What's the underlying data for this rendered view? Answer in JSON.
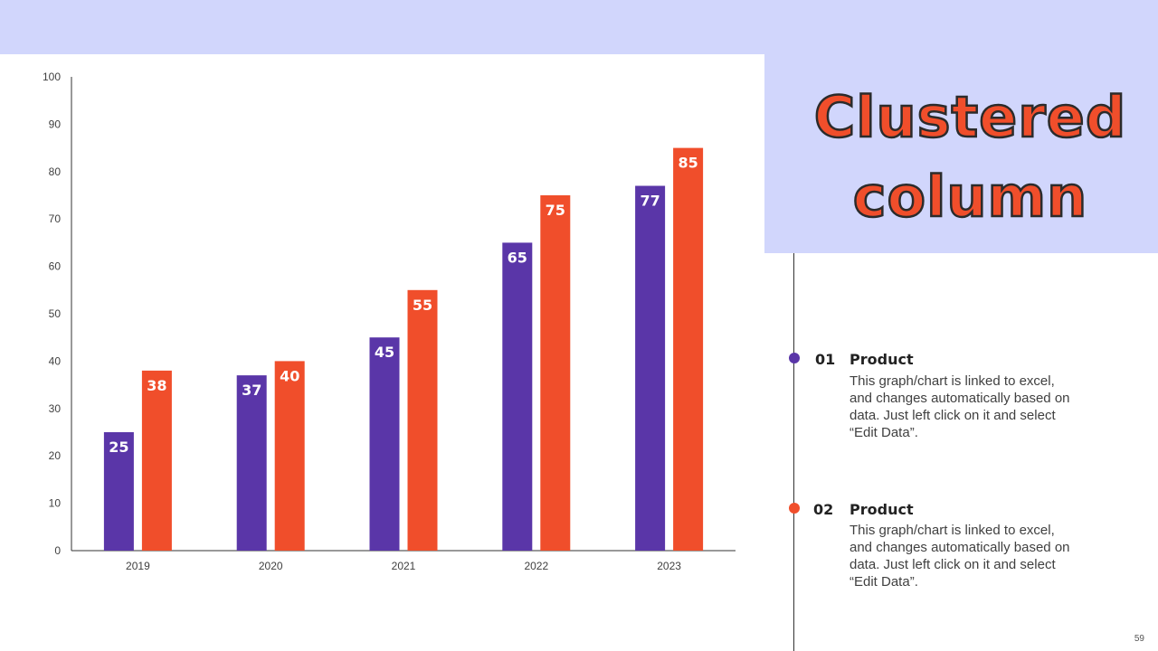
{
  "slide": {
    "title": "Clustered column",
    "page_number": "59"
  },
  "legend": [
    {
      "number": "01",
      "heading": "Product",
      "text": "This graph/chart is linked to excel, and changes automatically based on data. Just left click on it and select “Edit Data”.",
      "color": "#5a36a8"
    },
    {
      "number": "02",
      "heading": "Product",
      "text": "This graph/chart is linked to excel, and changes automatically based on data. Just left click on it and select “Edit Data”.",
      "color": "#f04e2b"
    }
  ],
  "chart_data": {
    "type": "bar",
    "title": "",
    "xlabel": "",
    "ylabel": "",
    "categories": [
      "2019",
      "2020",
      "2021",
      "2022",
      "2023"
    ],
    "series": [
      {
        "name": "Product 01",
        "values": [
          25,
          37,
          45,
          65,
          77
        ],
        "color": "#5a36a8"
      },
      {
        "name": "Product 02",
        "values": [
          38,
          40,
          55,
          75,
          85
        ],
        "color": "#f04e2b"
      }
    ],
    "ylim": [
      0,
      100
    ],
    "yticks": [
      0,
      10,
      20,
      30,
      40,
      50,
      60,
      70,
      80,
      90,
      100
    ],
    "grid": false,
    "legend": "none"
  }
}
